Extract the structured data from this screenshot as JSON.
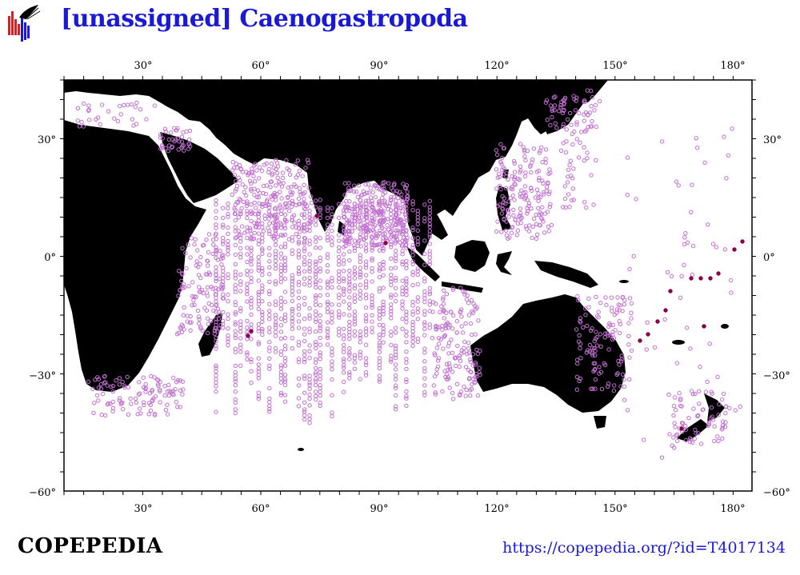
{
  "header": {
    "title": "[unassigned] Caenogastropoda"
  },
  "footer": {
    "brand": "COPEPEDIA",
    "url": "https://copepedia.org/?id=T4017134"
  },
  "map": {
    "lon_ticks": [
      "30°",
      "60°",
      "90°",
      "120°",
      "150°",
      "180°"
    ],
    "lat_ticks": [
      "30°",
      "0°",
      "−30°",
      "−60°"
    ],
    "lon_range": [
      10,
      185
    ],
    "lat_range": [
      -60,
      45
    ],
    "land_color": "#000000",
    "ocean_color": "#ffffff",
    "point_color": "#c26fd1",
    "highlight_color": "#8a0050"
  }
}
